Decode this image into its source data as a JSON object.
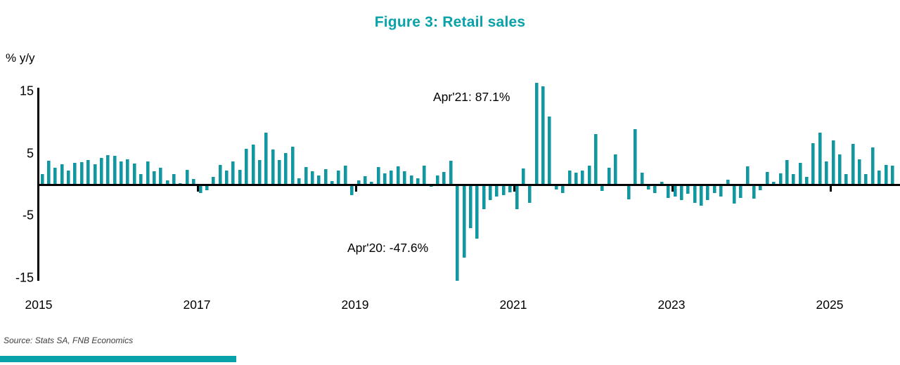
{
  "header": {
    "title": "Figure 3: Retail sales"
  },
  "source_note": "Source: Stats SA, FNB Economics",
  "colors": {
    "bar_teal": "#10979F",
    "title_teal": "#09A1AA",
    "footer_strip_teal": "#09A1AA",
    "axis_black": "#000000",
    "source_gray": "#3d3d3d"
  },
  "annotations": {
    "apr_2021": "Apr'21: 87.1%",
    "apr_2020": "Apr'20: -47.6%"
  },
  "chart_data": {
    "type": "bar",
    "title": "Figure 3: Retail sales",
    "ylabel": "% y/y",
    "xlabel": "",
    "frequency": "monthly",
    "start_month": "2015-01",
    "end_month": "2025-10",
    "y_ticks": [
      15,
      5,
      -5,
      -15
    ],
    "x_tick_years": [
      2015,
      2017,
      2019,
      2021,
      2023,
      2025
    ],
    "ylim_displayed": [
      -15,
      15
    ],
    "grid": false,
    "legend": "none",
    "clipped_points": [
      {
        "month": "2020-04",
        "value": -47.6
      },
      {
        "month": "2021-04",
        "value": 87.1
      }
    ],
    "values": [
      1.7,
      3.8,
      2.7,
      3.3,
      2.2,
      3.5,
      3.6,
      4.0,
      3.3,
      4.3,
      4.7,
      4.6,
      3.7,
      4.1,
      3.4,
      1.7,
      3.7,
      2.1,
      2.7,
      0.7,
      1.7,
      0.2,
      2.4,
      0.9,
      -1.4,
      -0.9,
      1.2,
      3.2,
      2.3,
      3.7,
      2.4,
      5.8,
      6.4,
      4.0,
      8.3,
      5.6,
      4.0,
      5.1,
      6.1,
      1.0,
      2.8,
      2.1,
      1.5,
      2.5,
      0.6,
      2.2,
      3.0,
      -1.7,
      0.7,
      1.4,
      0.5,
      2.8,
      1.8,
      2.2,
      2.9,
      2.1,
      1.5,
      1.0,
      3.0,
      -0.3,
      1.5,
      2.0,
      3.8,
      -47.6,
      -11.7,
      -7.0,
      -8.7,
      -4.0,
      -2.5,
      -1.9,
      -1.7,
      -1.2,
      -3.9,
      2.6,
      -2.9,
      87.1,
      15.8,
      10.9,
      -0.8,
      -1.3,
      2.3,
      1.9,
      2.2,
      3.1,
      8.1,
      -1.0,
      2.7,
      4.8,
      0.1,
      -2.4,
      8.9,
      1.9,
      -0.8,
      -1.4,
      0.4,
      -2.1,
      -1.9,
      -2.5,
      -1.5,
      -2.9,
      -3.4,
      -2.5,
      -1.4,
      -1.9,
      0.8,
      -3.0,
      -2.1,
      2.9,
      -2.2,
      -0.9,
      2.0,
      0.5,
      1.8,
      4.0,
      1.7,
      3.5,
      1.2,
      6.6,
      8.3,
      3.7,
      7.1,
      4.8,
      1.7,
      6.5,
      4.1,
      1.7,
      6.0,
      2.3,
      3.2,
      3.0
    ]
  }
}
